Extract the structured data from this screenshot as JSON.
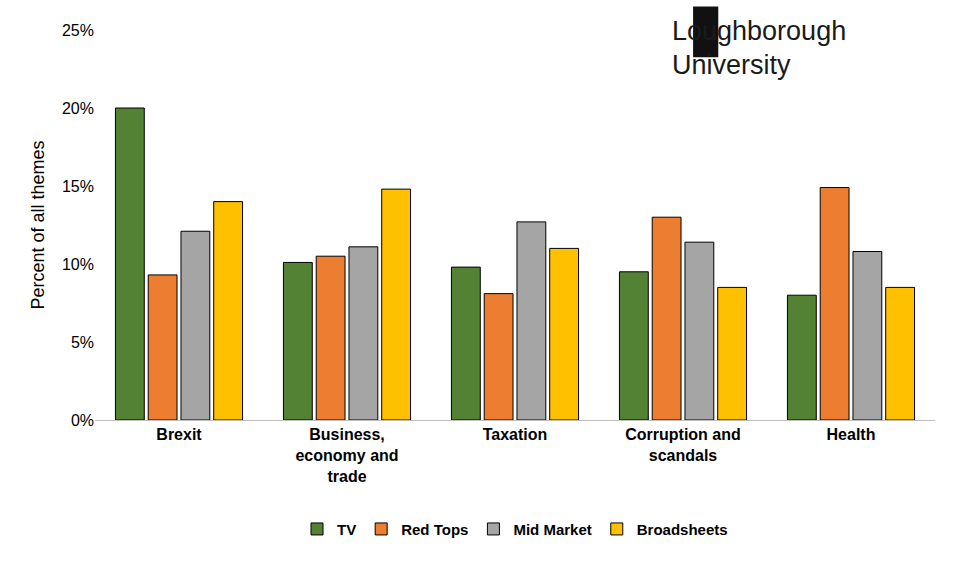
{
  "chart_data": {
    "type": "bar",
    "y_label": "Percent of all themes",
    "categories": [
      "Brexit",
      "Business, economy and trade",
      "Taxation",
      "Corruption and scandals",
      "Health"
    ],
    "series": [
      {
        "name": "TV",
        "color": "#548235",
        "values": [
          20.0,
          10.1,
          9.8,
          9.5,
          8.0
        ]
      },
      {
        "name": "Red Tops",
        "color": "#ED7D31",
        "values": [
          9.3,
          10.5,
          8.1,
          13.0,
          14.9
        ]
      },
      {
        "name": "Mid Market",
        "color": "#A5A5A5",
        "values": [
          12.1,
          11.1,
          12.7,
          11.4,
          10.8
        ]
      },
      {
        "name": "Broadsheets",
        "color": "#FFC000",
        "values": [
          14.0,
          14.8,
          11.0,
          8.5,
          8.5
        ]
      }
    ],
    "ylim": [
      0,
      25
    ],
    "yticks": [
      {
        "value": 0,
        "label": "0%"
      },
      {
        "value": 5,
        "label": "5%"
      },
      {
        "value": 10,
        "label": "10%"
      },
      {
        "value": 15,
        "label": "15%"
      },
      {
        "value": 20,
        "label": "20%"
      },
      {
        "value": 25,
        "label": "25%"
      }
    ],
    "grid": false,
    "legend": "bottom",
    "annotations": [
      "Loughborough",
      "University"
    ]
  }
}
